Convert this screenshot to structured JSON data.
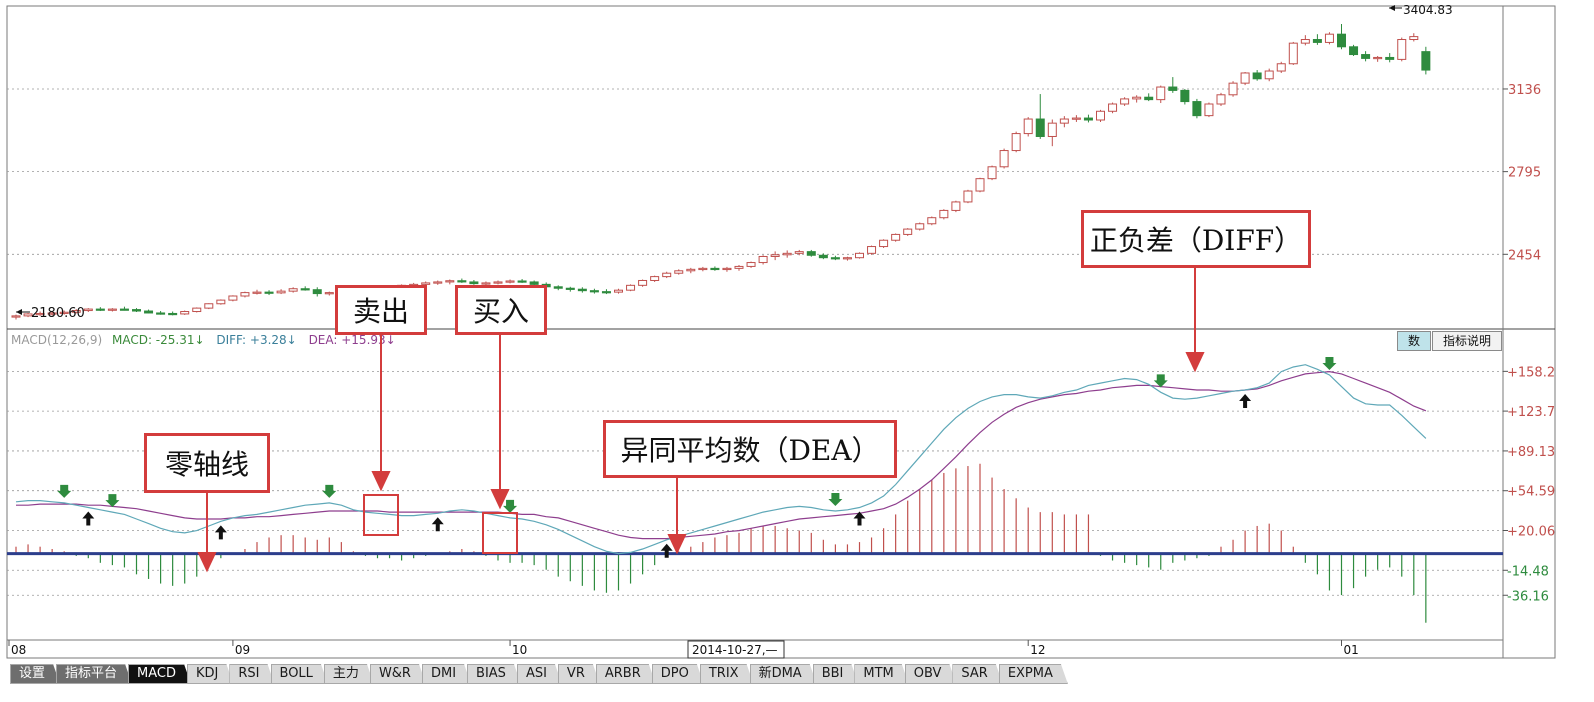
{
  "chart_data": [
    {
      "type": "candlestick",
      "title": "",
      "ylim": [
        2150,
        3470
      ],
      "ytick_labels": [
        "2454",
        "2795",
        "3136"
      ],
      "ytick_values": [
        2454,
        2795,
        3136
      ],
      "xtick_labels": [
        "08",
        "09",
        "10",
        "12",
        "01"
      ],
      "low_marker": "2180.60",
      "high_marker": "3404.83",
      "candles_ohlc": [
        [
          2195,
          2205,
          2185,
          2200
        ],
        [
          2200,
          2212,
          2195,
          2208
        ],
        [
          2208,
          2218,
          2200,
          2210
        ],
        [
          2210,
          2220,
          2202,
          2212
        ],
        [
          2212,
          2222,
          2205,
          2215
        ],
        [
          2215,
          2228,
          2210,
          2222
        ],
        [
          2222,
          2232,
          2216,
          2228
        ],
        [
          2228,
          2236,
          2220,
          2225
        ],
        [
          2225,
          2232,
          2218,
          2228
        ],
        [
          2228,
          2238,
          2222,
          2226
        ],
        [
          2226,
          2232,
          2216,
          2220
        ],
        [
          2220,
          2226,
          2210,
          2212
        ],
        [
          2212,
          2220,
          2205,
          2210
        ],
        [
          2210,
          2218,
          2202,
          2208
        ],
        [
          2208,
          2222,
          2204,
          2218
        ],
        [
          2218,
          2235,
          2214,
          2232
        ],
        [
          2232,
          2252,
          2228,
          2250
        ],
        [
          2250,
          2268,
          2246,
          2265
        ],
        [
          2265,
          2285,
          2260,
          2282
        ],
        [
          2282,
          2300,
          2276,
          2296
        ],
        [
          2296,
          2308,
          2288,
          2298
        ],
        [
          2298,
          2306,
          2286,
          2295
        ],
        [
          2295,
          2310,
          2290,
          2302
        ],
        [
          2302,
          2318,
          2296,
          2312
        ],
        [
          2312,
          2322,
          2304,
          2308
        ],
        [
          2308,
          2318,
          2280,
          2292
        ],
        [
          2292,
          2300,
          2284,
          2296
        ],
        [
          2296,
          2306,
          2288,
          2302
        ],
        [
          2302,
          2314,
          2296,
          2306
        ],
        [
          2306,
          2316,
          2296,
          2300
        ],
        [
          2300,
          2308,
          2292,
          2304
        ],
        [
          2304,
          2318,
          2298,
          2314
        ],
        [
          2314,
          2330,
          2308,
          2326
        ],
        [
          2326,
          2336,
          2318,
          2330
        ],
        [
          2330,
          2342,
          2322,
          2336
        ],
        [
          2336,
          2346,
          2328,
          2340
        ],
        [
          2340,
          2350,
          2330,
          2345
        ],
        [
          2345,
          2354,
          2336,
          2340
        ],
        [
          2340,
          2348,
          2328,
          2333
        ],
        [
          2333,
          2342,
          2322,
          2336
        ],
        [
          2336,
          2346,
          2330,
          2340
        ],
        [
          2340,
          2350,
          2334,
          2344
        ],
        [
          2344,
          2352,
          2336,
          2340
        ],
        [
          2340,
          2346,
          2320,
          2330
        ],
        [
          2330,
          2338,
          2316,
          2320
        ],
        [
          2320,
          2326,
          2306,
          2314
        ],
        [
          2314,
          2320,
          2300,
          2310
        ],
        [
          2310,
          2318,
          2296,
          2304
        ],
        [
          2304,
          2312,
          2292,
          2300
        ],
        [
          2300,
          2310,
          2290,
          2298
        ],
        [
          2298,
          2312,
          2292,
          2306
        ],
        [
          2306,
          2330,
          2302,
          2326
        ],
        [
          2326,
          2350,
          2320,
          2346
        ],
        [
          2346,
          2366,
          2340,
          2362
        ],
        [
          2362,
          2382,
          2356,
          2376
        ],
        [
          2376,
          2392,
          2370,
          2386
        ],
        [
          2386,
          2398,
          2376,
          2392
        ],
        [
          2392,
          2402,
          2384,
          2396
        ],
        [
          2396,
          2404,
          2386,
          2394
        ],
        [
          2394,
          2402,
          2382,
          2396
        ],
        [
          2396,
          2410,
          2386,
          2404
        ],
        [
          2404,
          2424,
          2398,
          2420
        ],
        [
          2420,
          2450,
          2412,
          2445
        ],
        [
          2445,
          2466,
          2430,
          2452
        ],
        [
          2452,
          2470,
          2440,
          2458
        ],
        [
          2458,
          2472,
          2450,
          2465
        ],
        [
          2465,
          2472,
          2444,
          2450
        ],
        [
          2450,
          2458,
          2434,
          2440
        ],
        [
          2440,
          2448,
          2430,
          2436
        ],
        [
          2436,
          2444,
          2428,
          2440
        ],
        [
          2440,
          2462,
          2436,
          2458
        ],
        [
          2458,
          2490,
          2452,
          2486
        ],
        [
          2486,
          2516,
          2480,
          2512
        ],
        [
          2512,
          2540,
          2506,
          2536
        ],
        [
          2536,
          2562,
          2530,
          2558
        ],
        [
          2558,
          2585,
          2552,
          2580
        ],
        [
          2580,
          2610,
          2574,
          2605
        ],
        [
          2605,
          2640,
          2598,
          2635
        ],
        [
          2635,
          2675,
          2628,
          2670
        ],
        [
          2670,
          2720,
          2665,
          2715
        ],
        [
          2715,
          2770,
          2710,
          2766
        ],
        [
          2766,
          2820,
          2760,
          2815
        ],
        [
          2815,
          2890,
          2808,
          2882
        ],
        [
          2882,
          2960,
          2875,
          2952
        ],
        [
          2952,
          3020,
          2940,
          3012
        ],
        [
          3012,
          3115,
          2930,
          2940
        ],
        [
          2940,
          3010,
          2900,
          2995
        ],
        [
          2995,
          3024,
          2978,
          3012
        ],
        [
          3012,
          3028,
          3000,
          3016
        ],
        [
          3016,
          3030,
          2998,
          3008
        ],
        [
          3008,
          3050,
          3000,
          3044
        ],
        [
          3044,
          3080,
          3036,
          3074
        ],
        [
          3074,
          3102,
          3066,
          3095
        ],
        [
          3095,
          3110,
          3080,
          3102
        ],
        [
          3102,
          3118,
          3086,
          3092
        ],
        [
          3092,
          3150,
          3078,
          3144
        ],
        [
          3144,
          3185,
          3120,
          3130
        ],
        [
          3130,
          3136,
          3072,
          3084
        ],
        [
          3084,
          3095,
          3015,
          3026
        ],
        [
          3026,
          3080,
          3020,
          3074
        ],
        [
          3074,
          3120,
          3066,
          3112
        ],
        [
          3112,
          3168,
          3104,
          3160
        ],
        [
          3160,
          3206,
          3152,
          3202
        ],
        [
          3202,
          3214,
          3170,
          3178
        ],
        [
          3178,
          3220,
          3168,
          3210
        ],
        [
          3210,
          3248,
          3202,
          3240
        ],
        [
          3240,
          3330,
          3235,
          3325
        ],
        [
          3325,
          3358,
          3316,
          3340
        ],
        [
          3340,
          3362,
          3318,
          3328
        ],
        [
          3328,
          3370,
          3320,
          3362
        ],
        [
          3362,
          3404,
          3300,
          3310
        ],
        [
          3310,
          3318,
          3272,
          3278
        ],
        [
          3278,
          3292,
          3250,
          3262
        ],
        [
          3262,
          3272,
          3248,
          3266
        ],
        [
          3266,
          3284,
          3246,
          3258
        ],
        [
          3258,
          3348,
          3250,
          3340
        ],
        [
          3340,
          3366,
          3332,
          3352
        ],
        [
          3290,
          3310,
          3196,
          3214
        ]
      ]
    },
    {
      "type": "macd",
      "title": "",
      "ylim": [
        -75,
        175
      ],
      "ytick_labels": [
        "+158.2",
        "+123.7",
        "+89.13",
        "+54.59",
        "+20.06",
        "-14.48",
        "-36.16"
      ],
      "ytick_values": [
        158.2,
        123.7,
        89.13,
        54.59,
        20.06,
        -14.48,
        -36.16
      ],
      "xtick_labels": [
        "08",
        "09",
        "10",
        "12",
        "01"
      ],
      "header": {
        "name": "MACD(12,26,9)",
        "macd_label": "MACD: -25.31",
        "diff_label": "DIFF: +3.28",
        "dea_label": "DEA: +15.93"
      },
      "series": [
        {
          "name": "DIFF",
          "values": [
            45,
            46,
            46,
            45,
            44,
            42,
            40,
            38,
            36,
            34,
            30,
            26,
            22,
            19,
            18,
            20,
            24,
            28,
            31,
            33,
            34,
            36,
            38,
            40,
            42,
            43,
            44,
            42,
            38,
            36,
            35,
            34,
            33,
            33,
            34,
            35,
            37,
            38,
            37,
            35,
            33,
            31,
            30,
            28,
            25,
            21,
            16,
            11,
            6,
            2,
            0,
            1,
            4,
            8,
            12,
            15,
            18,
            21,
            24,
            27,
            30,
            33,
            36,
            38,
            40,
            41,
            40,
            38,
            37,
            38,
            40,
            44,
            50,
            60,
            72,
            84,
            96,
            108,
            118,
            126,
            132,
            136,
            138,
            138,
            136,
            135,
            137,
            140,
            142,
            146,
            148,
            150,
            152,
            151,
            147,
            140,
            135,
            134,
            135,
            137,
            139,
            141,
            142,
            144,
            148,
            158,
            162,
            164,
            160,
            155,
            145,
            135,
            130,
            129,
            129,
            120,
            110,
            100
          ]
        },
        {
          "name": "DEA",
          "values": [
            42,
            42,
            43,
            43,
            43,
            43,
            42,
            42,
            41,
            40,
            39,
            37,
            35,
            33,
            31,
            30,
            30,
            30,
            31,
            31,
            32,
            32,
            33,
            34,
            35,
            36,
            37,
            37,
            37,
            37,
            37,
            36,
            36,
            36,
            36,
            36,
            36,
            36,
            36,
            36,
            36,
            35,
            34,
            34,
            32,
            31,
            28,
            25,
            22,
            19,
            16,
            14,
            13,
            13,
            13,
            14,
            15,
            16,
            17,
            19,
            20,
            22,
            24,
            26,
            28,
            30,
            31,
            32,
            33,
            34,
            35,
            37,
            39,
            43,
            49,
            56,
            64,
            74,
            84,
            95,
            105,
            114,
            121,
            127,
            131,
            134,
            136,
            138,
            139,
            141,
            142,
            144,
            145,
            146,
            146,
            145,
            144,
            143,
            142,
            142,
            141,
            141,
            142,
            143,
            146,
            150,
            153,
            156,
            157,
            158,
            156,
            152,
            148,
            144,
            140,
            134,
            128,
            124
          ]
        }
      ],
      "histogram": [
        6,
        8,
        6,
        4,
        2,
        -2,
        -4,
        -8,
        -10,
        -12,
        -18,
        -22,
        -26,
        -28,
        -26,
        -20,
        -12,
        -4,
        0,
        4,
        10,
        14,
        16,
        16,
        14,
        12,
        14,
        10,
        2,
        -2,
        -4,
        -4,
        -6,
        -4,
        -2,
        0,
        2,
        4,
        2,
        -2,
        -6,
        -8,
        -8,
        -10,
        -14,
        -20,
        -24,
        -28,
        -32,
        -34,
        -32,
        -26,
        -18,
        -10,
        -2,
        2,
        6,
        10,
        14,
        16,
        18,
        22,
        24,
        24,
        22,
        20,
        18,
        12,
        8,
        8,
        10,
        14,
        22,
        34,
        46,
        56,
        64,
        70,
        74,
        76,
        78,
        66,
        56,
        48,
        40,
        36,
        36,
        34,
        34,
        34,
        -2,
        -6,
        -8,
        -10,
        -12,
        -14,
        -8,
        -6,
        -4,
        -2,
        6,
        12,
        20,
        24,
        26,
        20,
        6,
        -8,
        -18,
        -32,
        -36,
        -30,
        -20,
        -14,
        -12,
        -20,
        -36,
        -60
      ],
      "signals": [
        {
          "index": 4,
          "kind": "sell"
        },
        {
          "index": 6,
          "kind": "buy"
        },
        {
          "index": 8,
          "kind": "sell"
        },
        {
          "index": 17,
          "kind": "buy"
        },
        {
          "index": 26,
          "kind": "sell"
        },
        {
          "index": 35,
          "kind": "buy"
        },
        {
          "index": 41,
          "kind": "sell"
        },
        {
          "index": 54,
          "kind": "buy"
        },
        {
          "index": 68,
          "kind": "sell"
        },
        {
          "index": 70,
          "kind": "buy"
        },
        {
          "index": 95,
          "kind": "sell"
        },
        {
          "index": 102,
          "kind": "buy"
        },
        {
          "index": 109,
          "kind": "sell"
        }
      ]
    }
  ],
  "cursor_date_label": "2014-10-27,—",
  "side_buttons": {
    "shu": "数",
    "zbsm": "指标说明"
  },
  "annotations": {
    "maichu": "卖出",
    "mairu": "买入",
    "zero_axis": "零轴线",
    "dea": "异同平均数（DEA）",
    "diff": "正负差（DIFF）"
  },
  "tabs": [
    "设置",
    "指标平台",
    "MACD",
    "KDJ",
    "RSI",
    "BOLL",
    "主力",
    "W&R",
    "DMI",
    "BIAS",
    "ASI",
    "VR",
    "ARBR",
    "DPO",
    "TRIX",
    "新DMA",
    "BBI",
    "MTM",
    "OBV",
    "SAR",
    "EXPMA"
  ],
  "active_tab": "MACD",
  "colors": {
    "up": "#c0504d",
    "down": "#2e8b3e",
    "diff_line": "#5fa8b8",
    "dea_line": "#8e3e8e",
    "zero_axis": "#2c3e8c",
    "annotation_border": "#d33c3c",
    "macd_label": "#3a8a3a",
    "diff_label": "#3a7f9a",
    "dea_label": "#8e3e8e"
  }
}
